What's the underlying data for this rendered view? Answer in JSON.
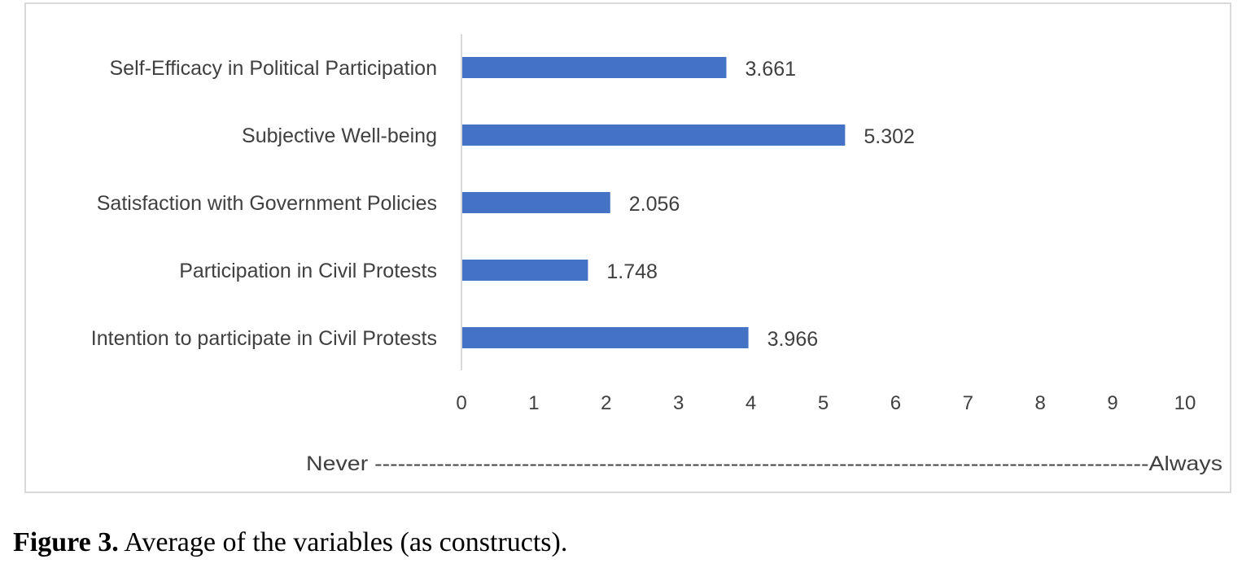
{
  "chart_data": {
    "type": "bar",
    "orientation": "horizontal",
    "categories": [
      "Self-Efficacy in Political Participation",
      "Subjective Well-being",
      "Satisfaction with Government Policies",
      "Participation in Civil Protests",
      "Intention to participate in Civil Protests"
    ],
    "values": [
      3.661,
      5.302,
      2.056,
      1.748,
      3.966
    ],
    "value_labels": [
      "3.661",
      "5.302",
      "2.056",
      "1.748",
      "3.966"
    ],
    "xlim": [
      0,
      10
    ],
    "xticks": [
      "0",
      "1",
      "2",
      "3",
      "4",
      "5",
      "6",
      "7",
      "8",
      "9",
      "10"
    ],
    "bar_color": "#4472c4",
    "grid": false,
    "scale_label": "Never ----------------------------------------------------------------------------------------------------Always"
  },
  "caption": {
    "label": "Figure 3.",
    "text": " Average of the variables (as constructs)."
  }
}
